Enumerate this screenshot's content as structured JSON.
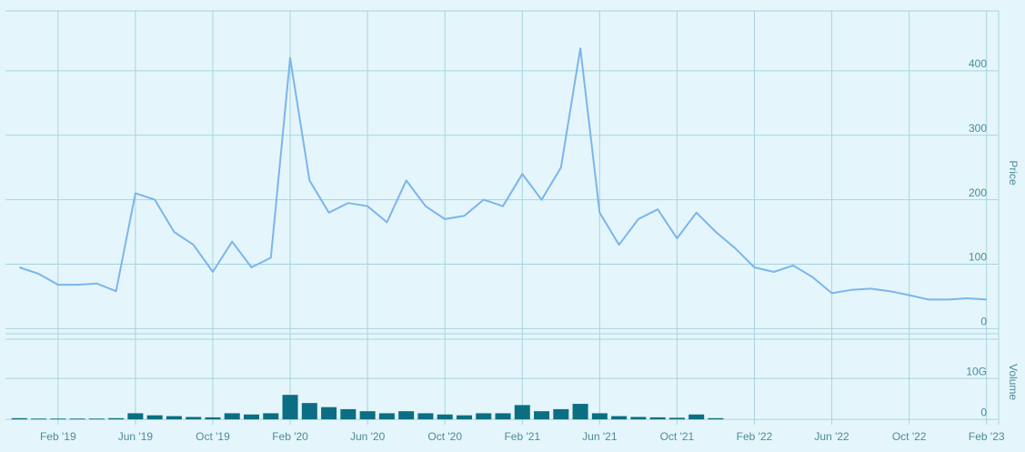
{
  "chart_data": {
    "type": "line",
    "x": [
      "2018-12",
      "2019-01",
      "2019-02",
      "2019-03",
      "2019-04",
      "2019-05",
      "2019-06",
      "2019-07",
      "2019-08",
      "2019-09",
      "2019-10",
      "2019-11",
      "2019-12",
      "2020-01",
      "2020-02",
      "2020-03",
      "2020-04",
      "2020-05",
      "2020-06",
      "2020-07",
      "2020-08",
      "2020-09",
      "2020-10",
      "2020-11",
      "2020-12",
      "2021-01",
      "2021-02",
      "2021-03",
      "2021-04",
      "2021-05",
      "2021-06",
      "2021-07",
      "2021-08",
      "2021-09",
      "2021-10",
      "2021-11",
      "2021-12",
      "2022-01",
      "2022-02",
      "2022-03",
      "2022-04",
      "2022-05",
      "2022-06",
      "2022-07",
      "2022-08",
      "2022-09",
      "2022-10",
      "2022-11",
      "2022-12",
      "2023-01",
      "2023-02"
    ],
    "xlim": [
      "2018-11",
      "2023-03"
    ],
    "xticks": [
      {
        "value": "2019-02",
        "label": "Feb '19"
      },
      {
        "value": "2019-06",
        "label": "Jun '19"
      },
      {
        "value": "2019-10",
        "label": "Oct '19"
      },
      {
        "value": "2020-02",
        "label": "Feb '20"
      },
      {
        "value": "2020-06",
        "label": "Jun '20"
      },
      {
        "value": "2020-10",
        "label": "Oct '20"
      },
      {
        "value": "2021-02",
        "label": "Feb '21"
      },
      {
        "value": "2021-06",
        "label": "Jun '21"
      },
      {
        "value": "2021-10",
        "label": "Oct '21"
      },
      {
        "value": "2022-02",
        "label": "Feb '22"
      },
      {
        "value": "2022-06",
        "label": "Jun '22"
      },
      {
        "value": "2022-10",
        "label": "Oct '22"
      },
      {
        "value": "2023-02",
        "label": "Feb '23"
      }
    ],
    "series": [
      {
        "name": "Price",
        "color": "#7cb5ec",
        "values": [
          95,
          85,
          68,
          68,
          70,
          58,
          210,
          200,
          150,
          130,
          88,
          135,
          95,
          110,
          420,
          230,
          180,
          195,
          190,
          165,
          230,
          190,
          170,
          175,
          200,
          190,
          240,
          200,
          250,
          435,
          180,
          130,
          170,
          185,
          140,
          180,
          150,
          125,
          95,
          88,
          98,
          80,
          55,
          60,
          62,
          58,
          52,
          45,
          45,
          47,
          45
        ]
      },
      {
        "name": "Volume",
        "color": "#0c6e82",
        "axis": "y2",
        "values": [
          0.3,
          0.2,
          0.2,
          0.2,
          0.2,
          0.3,
          1.5,
          1.0,
          0.8,
          0.6,
          0.5,
          1.5,
          1.2,
          1.5,
          6.0,
          4.0,
          3.0,
          2.5,
          2.0,
          1.5,
          2.0,
          1.5,
          1.2,
          1.0,
          1.5,
          1.5,
          3.5,
          2.0,
          2.5,
          3.8,
          1.5,
          0.8,
          0.6,
          0.5,
          0.4,
          1.2,
          0.3,
          0,
          0,
          0,
          0,
          0,
          0,
          0,
          0,
          0,
          0,
          0,
          0,
          0,
          0
        ]
      }
    ],
    "ylim": [
      -8,
      493
    ],
    "yticks": [
      0,
      100,
      200,
      300,
      400
    ],
    "y2lim": [
      -1.3,
      19.6
    ],
    "y2ticks": [
      0,
      {
        "value": 10,
        "label": "10G"
      }
    ],
    "grid": true
  }
}
